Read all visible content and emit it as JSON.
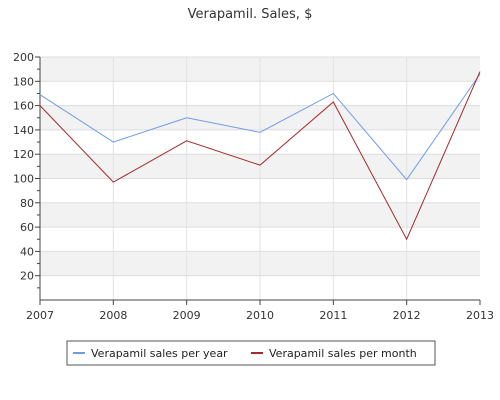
{
  "chart_data": {
    "type": "line",
    "title": "Verapamil. Sales, $",
    "x": [
      "2007",
      "2008",
      "2009",
      "2010",
      "2011",
      "2012",
      "2013"
    ],
    "ylim": [
      0,
      200
    ],
    "yticks": [
      20,
      40,
      60,
      80,
      100,
      120,
      140,
      160,
      180,
      200
    ],
    "grid": "horizontal bands",
    "legend_position": "bottom",
    "series": [
      {
        "name": "Verapamil sales per year",
        "color": "#6f9be8",
        "values": [
          169,
          130,
          150,
          138,
          170,
          99,
          186
        ]
      },
      {
        "name": "Verapamil sales per month",
        "color": "#a52a2a",
        "values": [
          160,
          97,
          131,
          111,
          163,
          50,
          188
        ]
      }
    ]
  }
}
